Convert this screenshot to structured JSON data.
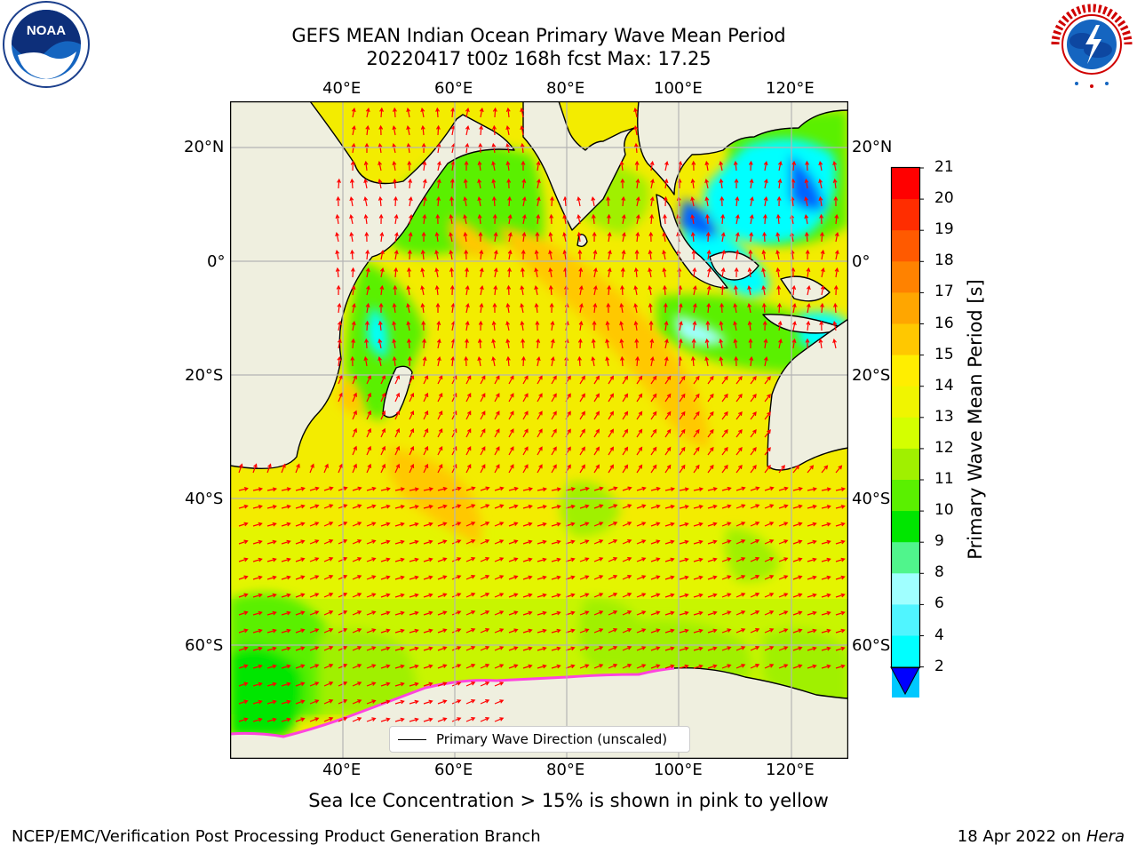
{
  "title_line1": "GEFS MEAN Indian Ocean Primary Wave Mean Period",
  "title_line2": "20220417 t00z 168h fcst   Max: 17.25",
  "logos": {
    "left": "noaa-logo",
    "right": "national-weather-service-logo"
  },
  "map": {
    "lon_labels": [
      "40°E",
      "60°E",
      "80°E",
      "100°E",
      "120°E"
    ],
    "lat_labels": [
      "20°N",
      "0°",
      "20°S",
      "40°S",
      "60°S"
    ],
    "extent": {
      "lon_min": 20,
      "lon_max": 130,
      "lat_min": -72,
      "lat_max": 28
    },
    "legend_text": "Primary Wave Direction (unscaled)",
    "colors": {
      "land": "#efefdf",
      "arrow": "#ff0000",
      "coast": "#000000",
      "grid": "#b4b4b4"
    }
  },
  "colorbar": {
    "title": "Primary Wave Mean Period [s]",
    "ticks": [
      "21",
      "20",
      "19",
      "18",
      "17",
      "16",
      "15",
      "14",
      "13",
      "12",
      "11",
      "10",
      "9",
      "8",
      "6",
      "4",
      "2"
    ],
    "colors_top_to_bottom": [
      "#ff0000",
      "#ff2d00",
      "#ff5a00",
      "#ff8200",
      "#ffa600",
      "#ffc800",
      "#ffee00",
      "#f0f500",
      "#d4ff00",
      "#a0f000",
      "#5af000",
      "#00e600",
      "#50f58c",
      "#a0ffff",
      "#50f5ff",
      "#00ffff",
      "#00c8ff",
      "#0064ff"
    ],
    "extend_color": "#0000ff"
  },
  "sea_ice_note": "Sea Ice Concentration > 15% is shown in pink to yellow",
  "credit": "NCEP/EMC/Verification Post Processing Product Generation Branch",
  "date_text": "18 Apr 2022 on",
  "date_host": "Hera"
}
